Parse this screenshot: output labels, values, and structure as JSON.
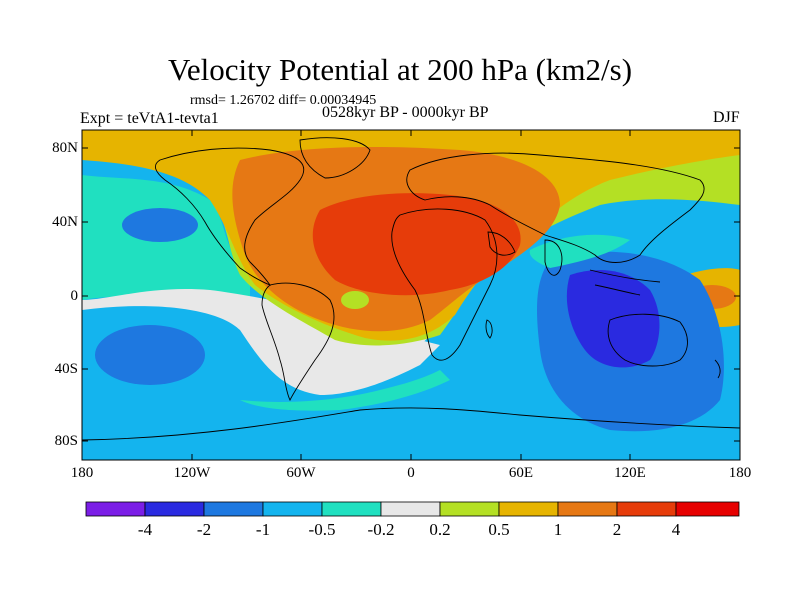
{
  "title": "Velocity Potential at 200 hPa (km2/s)",
  "stats_line": "rmsd= 1.26702 diff= 0.00034945",
  "left_subtitle": "Expt = teVtA1-tevta1",
  "center_subtitle": "0528kyr BP - 0000kyr BP",
  "right_subtitle": "DJF",
  "lat_ticks": [
    "80N",
    "40N",
    "0",
    "40S",
    "80S"
  ],
  "lon_ticks": [
    "180",
    "120W",
    "60W",
    "0",
    "60E",
    "120E",
    "180"
  ],
  "colorbar": {
    "labels": [
      "-4",
      "-2",
      "-1",
      "-0.5",
      "-0.2",
      "0.2",
      "0.5",
      "1",
      "2",
      "4"
    ],
    "colors": [
      "#7b1ee6",
      "#2a2ae0",
      "#1e78e0",
      "#14b4ee",
      "#20e0c0",
      "#e8e8e8",
      "#b4e024",
      "#e6b400",
      "#e67814",
      "#e63c0a",
      "#e60000"
    ]
  }
}
